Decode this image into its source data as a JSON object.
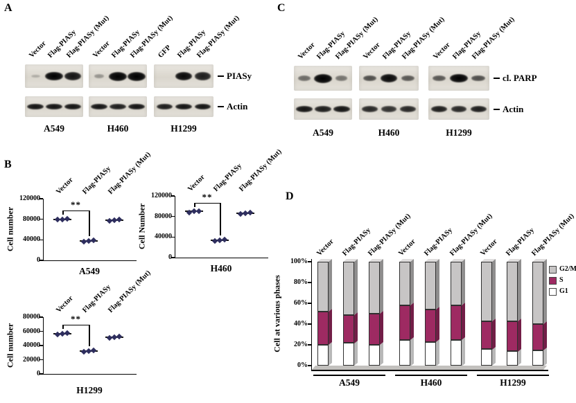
{
  "panels": {
    "A": {
      "label": "A",
      "lane_labels": [
        "Vector",
        "Flag-PIASy",
        "Flag-PIASy (Mut)",
        "Vector",
        "Flag-PIASy",
        "Flag-PIASy (Mut)",
        "GFP",
        "Flag-PIASy",
        "Flag-PIASy (Mut)"
      ],
      "row_labels": [
        "PIASy",
        "Actin"
      ],
      "cell_lines": [
        "A549",
        "H460",
        "H1299"
      ],
      "band_intensities": [
        [
          [
            0.06,
            0.95,
            0.85
          ],
          [
            0.18,
            1,
            1
          ],
          [
            0,
            0.9,
            0.8
          ]
        ],
        [
          [
            0.85,
            0.85,
            0.85
          ],
          [
            0.85,
            0.8,
            0.85
          ],
          [
            0.8,
            0.85,
            0.85
          ]
        ]
      ]
    },
    "B": {
      "label": "B"
    },
    "C": {
      "label": "C",
      "lane_labels": [
        "Vector",
        "Flag-PIASy",
        "Flag-PIASy (Mut)",
        "Vector",
        "Flag-PIASy",
        "Flag-PIASy (Mut)",
        "Vector",
        "Flag-PIASy",
        "Flag-PIASy (Mut)"
      ],
      "row_labels": [
        "cl. PARP",
        "Actin"
      ],
      "cell_lines": [
        "A549",
        "H460",
        "H1299"
      ],
      "band_intensities": [
        [
          [
            0.4,
            1,
            0.35
          ],
          [
            0.55,
            0.9,
            0.5
          ],
          [
            0.5,
            0.95,
            0.55
          ]
        ],
        [
          [
            0.85,
            0.8,
            0.85
          ],
          [
            0.75,
            0.7,
            0.75
          ],
          [
            0.8,
            0.75,
            0.8
          ]
        ]
      ]
    },
    "D": {
      "label": "D"
    }
  },
  "chart_data": [
    {
      "type": "scatter",
      "panel": "B",
      "title": "A549",
      "ylabel": "Cell number",
      "categories": [
        "Vector",
        "Flag-PIASy",
        "Flag-PIASy (Mut)"
      ],
      "points": [
        [
          79000,
          80000,
          81000
        ],
        [
          37000,
          38000,
          39000
        ],
        [
          77000,
          78000,
          79000
        ]
      ],
      "ylim": [
        0,
        120000
      ],
      "yticks": [
        0,
        40000,
        80000,
        120000
      ],
      "sig": "**",
      "sig_between": [
        "Vector",
        "Flag-PIASy"
      ]
    },
    {
      "type": "scatter",
      "panel": "B",
      "title": "H460",
      "ylabel": "Cell Number",
      "categories": [
        "Vector",
        "Flag-PIASy",
        "Flag-PIASy (Mut)"
      ],
      "points": [
        [
          88000,
          90000,
          91000
        ],
        [
          33000,
          34000,
          35000
        ],
        [
          85000,
          86000,
          87000
        ]
      ],
      "ylim": [
        0,
        120000
      ],
      "yticks": [
        0,
        40000,
        80000,
        120000
      ],
      "sig": "**",
      "sig_between": [
        "Vector",
        "Flag-PIASy"
      ]
    },
    {
      "type": "scatter",
      "panel": "B",
      "title": "H1299",
      "ylabel": "Cell number",
      "categories": [
        "Vector",
        "Flag-PIASy",
        "Flag-PIASy (Mut)"
      ],
      "points": [
        [
          56000,
          57000,
          58000
        ],
        [
          31000,
          32000,
          33000
        ],
        [
          51000,
          52000,
          53000
        ]
      ],
      "ylim": [
        0,
        80000
      ],
      "yticks": [
        0,
        20000,
        40000,
        60000,
        80000
      ],
      "sig": "**",
      "sig_between": [
        "Vector",
        "Flag-PIASy"
      ]
    },
    {
      "type": "bar-stacked-100",
      "panel": "D",
      "ylabel": "Cell at various phases",
      "yticks_percent": [
        0,
        20,
        40,
        60,
        80,
        100
      ],
      "groups": [
        "A549",
        "H460",
        "H1299"
      ],
      "categories": [
        "Vector",
        "Flag-PIASy",
        "Flag-PIASy (Mut)",
        "Vector",
        "Flag-PIASy",
        "Flag-PIASy (Mut)",
        "Vector",
        "Flag-PIASy",
        "Flag-PIASy (Mut)"
      ],
      "series": [
        {
          "name": "G1",
          "color": "#ffffff",
          "values": [
            20,
            22,
            20,
            25,
            23,
            25,
            16,
            14,
            15
          ]
        },
        {
          "name": "S",
          "color": "#9e2a62",
          "values": [
            32,
            27,
            30,
            33,
            31,
            33,
            27,
            29,
            25
          ]
        },
        {
          "name": "G2/M",
          "color": "#c7c5c5",
          "values": [
            48,
            51,
            50,
            42,
            46,
            42,
            57,
            57,
            60
          ]
        }
      ],
      "legend": [
        {
          "label": "G2/M",
          "color": "#c7c5c5"
        },
        {
          "label": "S",
          "color": "#9e2a62"
        },
        {
          "label": "G1",
          "color": "#ffffff"
        }
      ]
    }
  ]
}
